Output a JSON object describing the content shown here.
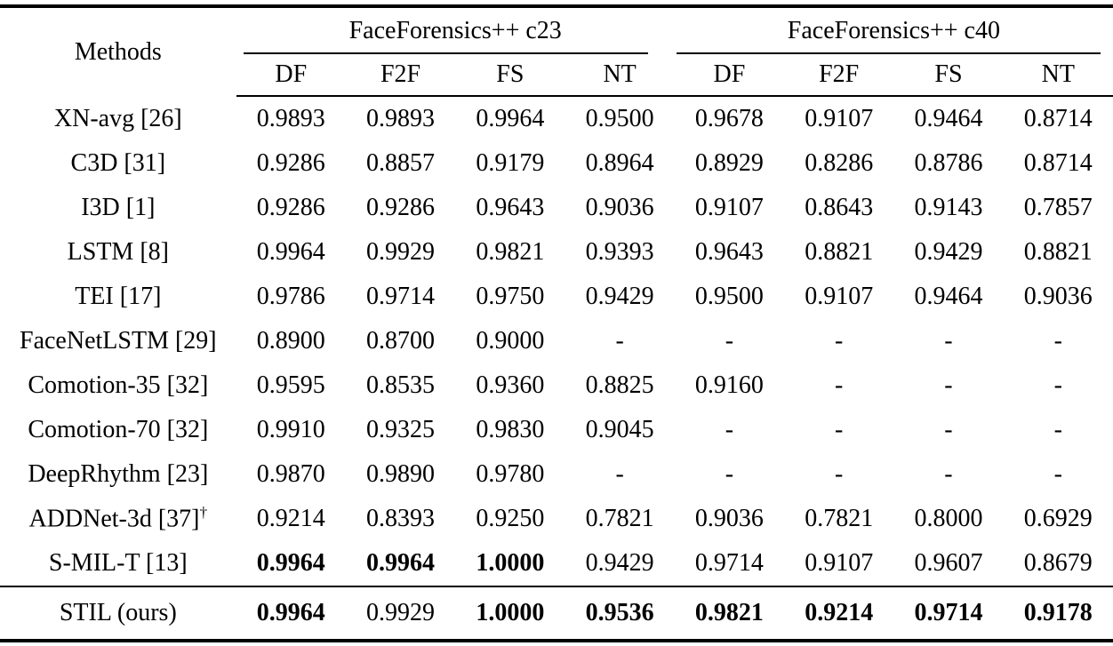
{
  "colors": {
    "text": "#000000",
    "background": "#ffffff",
    "rule": "#000000"
  },
  "table": {
    "method_header": "Methods",
    "col_groups": [
      {
        "label": "FaceForensics++ c23"
      },
      {
        "label": "FaceForensics++ c40"
      }
    ],
    "sub_headers": [
      "DF",
      "F2F",
      "FS",
      "NT",
      "DF",
      "F2F",
      "FS",
      "NT"
    ],
    "rows": [
      {
        "method": "XN-avg [26]",
        "sup": "",
        "values": [
          "0.9893",
          "0.9893",
          "0.9964",
          "0.9500",
          "0.9678",
          "0.9107",
          "0.9464",
          "0.8714"
        ],
        "bold": [
          false,
          false,
          false,
          false,
          false,
          false,
          false,
          false
        ]
      },
      {
        "method": "C3D [31]",
        "sup": "",
        "values": [
          "0.9286",
          "0.8857",
          "0.9179",
          "0.8964",
          "0.8929",
          "0.8286",
          "0.8786",
          "0.8714"
        ],
        "bold": [
          false,
          false,
          false,
          false,
          false,
          false,
          false,
          false
        ]
      },
      {
        "method": "I3D [1]",
        "sup": "",
        "values": [
          "0.9286",
          "0.9286",
          "0.9643",
          "0.9036",
          "0.9107",
          "0.8643",
          "0.9143",
          "0.7857"
        ],
        "bold": [
          false,
          false,
          false,
          false,
          false,
          false,
          false,
          false
        ]
      },
      {
        "method": "LSTM [8]",
        "sup": "",
        "values": [
          "0.9964",
          "0.9929",
          "0.9821",
          "0.9393",
          "0.9643",
          "0.8821",
          "0.9429",
          "0.8821"
        ],
        "bold": [
          false,
          false,
          false,
          false,
          false,
          false,
          false,
          false
        ]
      },
      {
        "method": "TEI [17]",
        "sup": "",
        "values": [
          "0.9786",
          "0.9714",
          "0.9750",
          "0.9429",
          "0.9500",
          "0.9107",
          "0.9464",
          "0.9036"
        ],
        "bold": [
          false,
          false,
          false,
          false,
          false,
          false,
          false,
          false
        ]
      },
      {
        "method": "FaceNetLSTM [29]",
        "sup": "",
        "values": [
          "0.8900",
          "0.8700",
          "0.9000",
          "-",
          "-",
          "-",
          "-",
          "-"
        ],
        "bold": [
          false,
          false,
          false,
          false,
          false,
          false,
          false,
          false
        ]
      },
      {
        "method": "Comotion-35 [32]",
        "sup": "",
        "values": [
          "0.9595",
          "0.8535",
          "0.9360",
          "0.8825",
          "0.9160",
          "-",
          "-",
          "-"
        ],
        "bold": [
          false,
          false,
          false,
          false,
          false,
          false,
          false,
          false
        ]
      },
      {
        "method": "Comotion-70 [32]",
        "sup": "",
        "values": [
          "0.9910",
          "0.9325",
          "0.9830",
          "0.9045",
          "-",
          "-",
          "-",
          "-"
        ],
        "bold": [
          false,
          false,
          false,
          false,
          false,
          false,
          false,
          false
        ]
      },
      {
        "method": "DeepRhythm [23]",
        "sup": "",
        "values": [
          "0.9870",
          "0.9890",
          "0.9780",
          "-",
          "-",
          "-",
          "-",
          "-"
        ],
        "bold": [
          false,
          false,
          false,
          false,
          false,
          false,
          false,
          false
        ]
      },
      {
        "method": "ADDNet-3d [37]",
        "sup": "†",
        "values": [
          "0.9214",
          "0.8393",
          "0.9250",
          "0.7821",
          "0.9036",
          "0.7821",
          "0.8000",
          "0.6929"
        ],
        "bold": [
          false,
          false,
          false,
          false,
          false,
          false,
          false,
          false
        ]
      },
      {
        "method": "S-MIL-T [13]",
        "sup": "",
        "values": [
          "0.9964",
          "0.9964",
          "1.0000",
          "0.9429",
          "0.9714",
          "0.9107",
          "0.9607",
          "0.8679"
        ],
        "bold": [
          true,
          true,
          true,
          false,
          false,
          false,
          false,
          false
        ]
      }
    ],
    "footer_row": {
      "method": "STIL (ours)",
      "sup": "",
      "values": [
        "0.9964",
        "0.9929",
        "1.0000",
        "0.9536",
        "0.9821",
        "0.9214",
        "0.9714",
        "0.9178"
      ],
      "bold": [
        true,
        false,
        true,
        true,
        true,
        true,
        true,
        true
      ]
    }
  }
}
